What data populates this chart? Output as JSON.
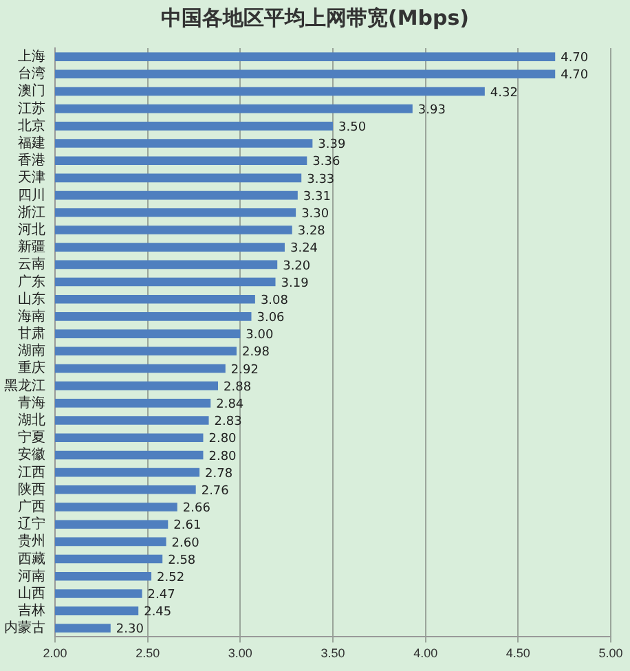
{
  "chart_data": {
    "type": "bar",
    "orientation": "horizontal",
    "title": "中国各地区平均上网带宽(Mbps)",
    "categories": [
      "上海",
      "台湾",
      "澳门",
      "江苏",
      "北京",
      "福建",
      "香港",
      "天津",
      "四川",
      "浙江",
      "河北",
      "新疆",
      "云南",
      "广东",
      "山东",
      "海南",
      "甘肃",
      "湖南",
      "重庆",
      "黑龙江",
      "青海",
      "湖北",
      "宁夏",
      "安徽",
      "江西",
      "陕西",
      "广西",
      "辽宁",
      "贵州",
      "西藏",
      "河南",
      "山西",
      "吉林",
      "内蒙古"
    ],
    "values": [
      4.7,
      4.7,
      4.32,
      3.93,
      3.5,
      3.39,
      3.36,
      3.33,
      3.31,
      3.3,
      3.28,
      3.24,
      3.2,
      3.19,
      3.08,
      3.06,
      3.0,
      2.98,
      2.92,
      2.88,
      2.84,
      2.83,
      2.8,
      2.8,
      2.78,
      2.76,
      2.66,
      2.61,
      2.6,
      2.58,
      2.52,
      2.47,
      2.45,
      2.3
    ],
    "value_labels": [
      "4.70",
      "4.70",
      "4.32",
      "3.93",
      "3.50",
      "3.39",
      "3.36",
      "3.33",
      "3.31",
      "3.30",
      "3.28",
      "3.24",
      "3.20",
      "3.19",
      "3.08",
      "3.06",
      "3.00",
      "2.98",
      "2.92",
      "2.88",
      "2.84",
      "2.83",
      "2.80",
      "2.80",
      "2.78",
      "2.76",
      "2.66",
      "2.61",
      "2.60",
      "2.58",
      "2.52",
      "2.47",
      "2.45",
      "2.30"
    ],
    "color": "#4f7fbf",
    "xlim": [
      2,
      5
    ],
    "xticks": [
      {
        "value": 2,
        "label": "2.00"
      },
      {
        "value": 2.5,
        "label": "2.50"
      },
      {
        "value": 3,
        "label": "3.00"
      },
      {
        "value": 3.5,
        "label": "3.50"
      },
      {
        "value": 4,
        "label": "4.00"
      },
      {
        "value": 4.5,
        "label": "4.50"
      },
      {
        "value": 5,
        "label": "5.00"
      }
    ],
    "grid": "x"
  }
}
